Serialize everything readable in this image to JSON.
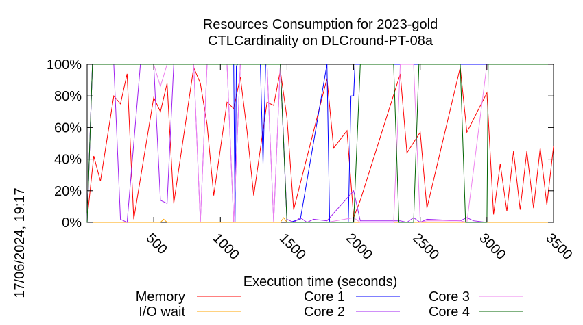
{
  "chart_data": {
    "type": "line",
    "title": "Resources Consumption for 2023-gold",
    "subtitle": "CTLCardinality on DLCround-PT-08a",
    "xlabel": "Execution time (seconds)",
    "ylabel": "",
    "side_label": "17/06/2024, 19:17",
    "xlim": [
      0,
      3500
    ],
    "ylim": [
      0,
      100
    ],
    "x_ticks": [
      500,
      1000,
      1500,
      2000,
      2500,
      3000,
      3500
    ],
    "x_tick_labels": [
      "500",
      "1000",
      "1500",
      "2000",
      "2500",
      "3000",
      "3500"
    ],
    "y_ticks": [
      0,
      20,
      40,
      60,
      80,
      100
    ],
    "y_tick_labels": [
      "0%",
      "20%",
      "40%",
      "60%",
      "80%",
      "100%"
    ],
    "grid": false,
    "legend_position": "bottom",
    "series": [
      {
        "name": "Memory",
        "color": "#ff0000",
        "x": [
          0,
          50,
          100,
          200,
          250,
          300,
          350,
          500,
          550,
          600,
          650,
          800,
          850,
          900,
          950,
          1050,
          1100,
          1150,
          1200,
          1250,
          1350,
          1400,
          1450,
          1500,
          1550,
          1800,
          1850,
          1950,
          2000,
          2050,
          2350,
          2400,
          2500,
          2550,
          2800,
          2850,
          3000,
          3050,
          3100,
          3150,
          3200,
          3250,
          3300,
          3350,
          3400,
          3450,
          3500
        ],
        "y": [
          2,
          42,
          26,
          80,
          75,
          94,
          2,
          79,
          70,
          88,
          12,
          98,
          88,
          62,
          17,
          76,
          72,
          92,
          58,
          17,
          76,
          74,
          96,
          66,
          8,
          91,
          47,
          58,
          3,
          14,
          94,
          44,
          57,
          9,
          98,
          57,
          82,
          5,
          37,
          7,
          45,
          8,
          45,
          9,
          47,
          11,
          48
        ]
      },
      {
        "name": "I/O wait",
        "color": "#ffa500",
        "x": [
          0,
          550,
          575,
          600,
          1450,
          1475,
          1500,
          3500
        ],
        "y": [
          0,
          0,
          2,
          0,
          0,
          3,
          0,
          0
        ]
      },
      {
        "name": "Core 1",
        "color": "#0000ff",
        "x": [
          0,
          40,
          1100,
          1110,
          1120,
          1130,
          1300,
          1320,
          1340,
          1380,
          1400,
          1450,
          1500,
          1520,
          1600,
          1800,
          1820,
          1840,
          1950,
          1960,
          1980,
          2000,
          2010,
          2050,
          3000,
          3010,
          3500
        ],
        "y": [
          0,
          100,
          100,
          0,
          99,
          100,
          100,
          37,
          100,
          100,
          100,
          100,
          0,
          0,
          2,
          100,
          0,
          0,
          0,
          0,
          80,
          80,
          100,
          100,
          100,
          100,
          100
        ]
      },
      {
        "name": "Core 2",
        "color": "#a020f0",
        "x": [
          0,
          40,
          200,
          250,
          300,
          400,
          500,
          550,
          600,
          650,
          800,
          850,
          900,
          1050,
          1100,
          1150,
          1200,
          1350,
          1400,
          1450,
          1500,
          1550,
          1600,
          1650,
          1700,
          1800,
          2000,
          2050,
          2100,
          2350,
          2400,
          2450,
          2500,
          2550,
          2800,
          2850,
          2900,
          3000
        ],
        "y": [
          0,
          100,
          100,
          2,
          0,
          100,
          100,
          14,
          12,
          100,
          100,
          0,
          100,
          100,
          0,
          100,
          100,
          100,
          0,
          100,
          2,
          0,
          3,
          0,
          2,
          1,
          20,
          1,
          1,
          1,
          0,
          3,
          0,
          2,
          1,
          3,
          1,
          0
        ]
      },
      {
        "name": "Core 3",
        "color": "#ee82ee",
        "x": [
          0,
          40,
          500,
          550,
          600,
          650,
          800,
          850,
          900,
          1050,
          1100,
          1150,
          1350,
          1400,
          1450,
          1500,
          1600,
          1800,
          2000,
          2050,
          2300,
          2350,
          2400,
          2450,
          2500,
          2550,
          2800,
          2850,
          3000
        ],
        "y": [
          0,
          100,
          100,
          86,
          100,
          100,
          100,
          0,
          100,
          100,
          0,
          100,
          100,
          0,
          100,
          0,
          0,
          0,
          3,
          0,
          0,
          100,
          100,
          100,
          0,
          1,
          1,
          0,
          100
        ]
      },
      {
        "name": "Core 4",
        "color": "#006400",
        "x": [
          0,
          40,
          1400,
          1450,
          1500,
          1850,
          1950,
          2000,
          2050,
          2300,
          2340,
          2400,
          2450,
          2490,
          2500,
          2800,
          2840,
          3000,
          3010,
          3500
        ],
        "y": [
          0,
          100,
          100,
          100,
          0,
          0,
          0,
          0,
          100,
          100,
          0,
          0,
          0,
          100,
          100,
          100,
          0,
          0,
          100,
          100
        ]
      }
    ]
  }
}
